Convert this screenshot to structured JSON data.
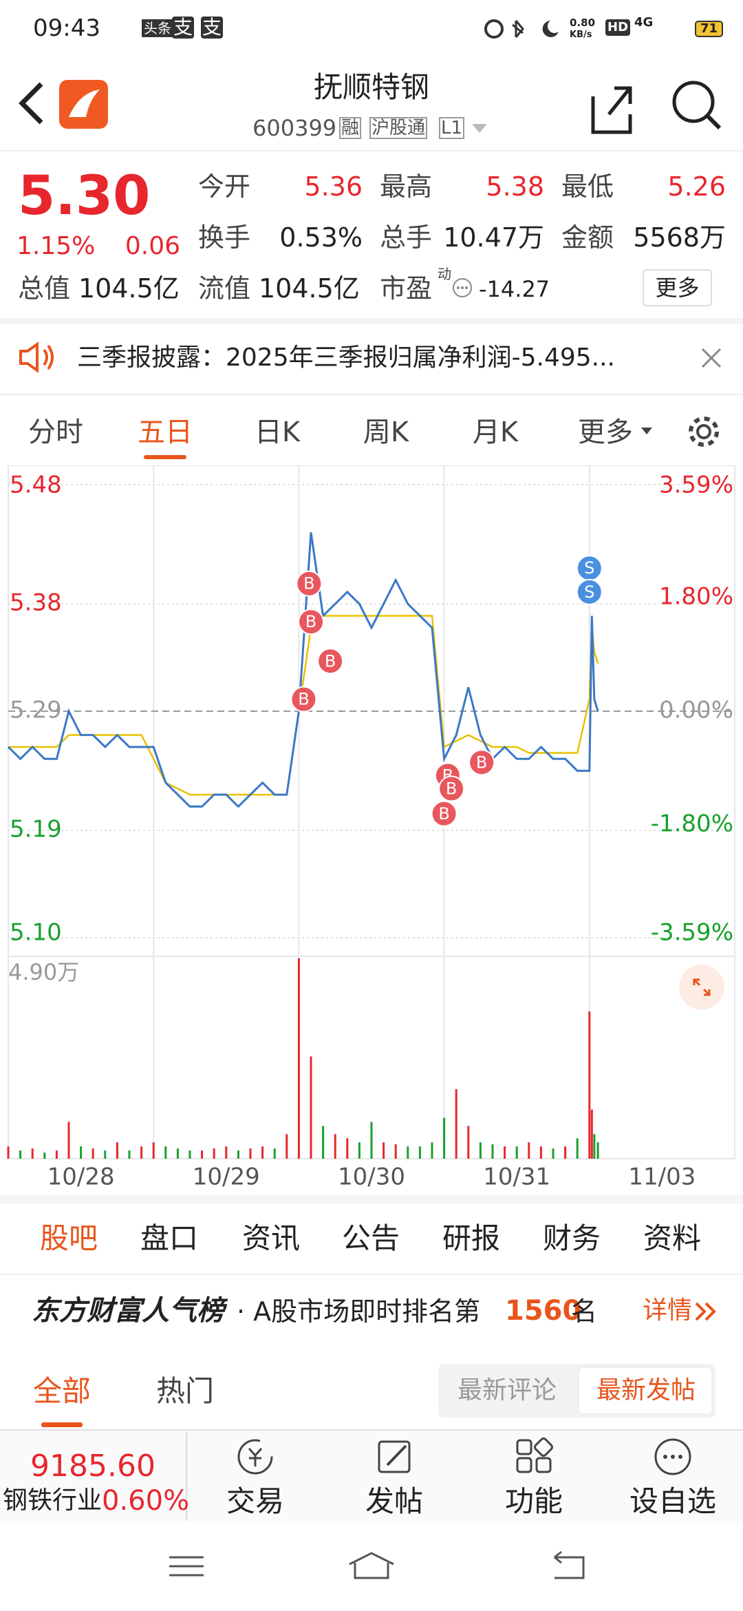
{
  "status_bar": {
    "time": "09:43",
    "app_icons": [
      "头条",
      "支",
      "支"
    ],
    "speed": "0.80",
    "speed_unit": "KB/s",
    "hd": "HD",
    "net": "4G",
    "battery": "71"
  },
  "header": {
    "title": "抚顺特钢",
    "code": "600399",
    "tags": [
      "融",
      "沪股通",
      "L1"
    ]
  },
  "quote": {
    "price": "5.30",
    "change_pct": "1.15%",
    "change": "0.06",
    "fields": [
      {
        "label": "今开",
        "value": "5.36"
      },
      {
        "label": "最高",
        "value": "5.38"
      },
      {
        "label": "最低",
        "value": "5.26"
      },
      {
        "label": "换手",
        "value": "0.53%"
      },
      {
        "label": "总手",
        "value": "10.47万"
      },
      {
        "label": "金额",
        "value": "5568万"
      },
      {
        "label": "总值",
        "value": "104.5亿"
      },
      {
        "label": "流值",
        "value": "104.5亿"
      },
      {
        "label": "市盈",
        "value": "-14.27"
      }
    ],
    "pe_note": "动",
    "more": "更多"
  },
  "notice": "三季报披露：2025年三季报归属净利润-5.495...",
  "tabs": [
    "分时",
    "五日",
    "日K",
    "周K",
    "月K",
    "更多"
  ],
  "chart_data": {
    "type": "line",
    "categories": [
      "10/28",
      "10/29",
      "10/30",
      "10/31",
      "11/03"
    ],
    "x": [
      0,
      1,
      2,
      3,
      4,
      5,
      6,
      7,
      8,
      9,
      10,
      11,
      12,
      13,
      14,
      15,
      16,
      17,
      18,
      19,
      20,
      21,
      22,
      23,
      24,
      25,
      26,
      27,
      28,
      29,
      30,
      31,
      32,
      33,
      34,
      35,
      36,
      37,
      38,
      39,
      40,
      41,
      42,
      43,
      44,
      45,
      46,
      47,
      48,
      48.2,
      48.4,
      48.7
    ],
    "xlim": [
      0,
      60
    ],
    "series": [
      {
        "name": "price",
        "color": "#3a78c6",
        "values": [
          5.26,
          5.25,
          5.26,
          5.25,
          5.25,
          5.29,
          5.27,
          5.27,
          5.26,
          5.27,
          5.26,
          5.26,
          5.26,
          5.23,
          5.22,
          5.21,
          5.21,
          5.22,
          5.22,
          5.21,
          5.22,
          5.23,
          5.22,
          5.22,
          5.29,
          5.44,
          5.37,
          5.38,
          5.39,
          5.38,
          5.36,
          5.38,
          5.4,
          5.38,
          5.37,
          5.36,
          5.25,
          5.27,
          5.31,
          5.27,
          5.25,
          5.26,
          5.25,
          5.25,
          5.26,
          5.25,
          5.25,
          5.24,
          5.24,
          5.37,
          5.3,
          5.29
        ]
      },
      {
        "name": "average",
        "color": "#e8c100",
        "values": [
          5.26,
          5.26,
          5.26,
          5.26,
          5.26,
          5.27,
          5.27,
          5.27,
          5.27,
          5.27,
          5.27,
          5.27,
          5.25,
          5.23,
          5.225,
          5.22,
          5.22,
          5.22,
          5.22,
          5.22,
          5.22,
          5.22,
          5.22,
          5.22,
          5.29,
          5.36,
          5.37,
          5.37,
          5.37,
          5.37,
          5.37,
          5.37,
          5.37,
          5.37,
          5.37,
          5.37,
          5.26,
          5.265,
          5.27,
          5.265,
          5.26,
          5.26,
          5.26,
          5.255,
          5.255,
          5.255,
          5.255,
          5.255,
          5.3,
          5.36,
          5.34,
          5.33
        ]
      }
    ],
    "ylim": [
      5.1,
      5.48
    ],
    "yticks": [
      5.48,
      5.38,
      5.29,
      5.19,
      {
        "value": 5.1,
        "label": "5.10"
      }
    ],
    "y2lim": [
      -3.59,
      3.59
    ],
    "y2ticks": [
      {
        "value": 3.59,
        "label": "3.59%"
      },
      {
        "value": 1.8,
        "label": "1.80%"
      },
      {
        "value": 0,
        "label": "0.00%"
      },
      {
        "value": -1.8,
        "label": "-1.80%"
      },
      {
        "value": -3.59,
        "label": "-3.59%"
      }
    ],
    "reference": 5.29,
    "trade_marks": [
      {
        "label": "B",
        "x": 24.85,
        "y": 5.397
      },
      {
        "label": "B",
        "x": 25.0,
        "y": 5.365
      },
      {
        "label": "B",
        "x": 26.6,
        "y": 5.332
      },
      {
        "label": "B",
        "x": 24.4,
        "y": 5.3
      },
      {
        "label": "B",
        "x": 36.3,
        "y": 5.236
      },
      {
        "label": "B",
        "x": 36.6,
        "y": 5.225
      },
      {
        "label": "B",
        "x": 36.0,
        "y": 5.204
      },
      {
        "label": "B",
        "x": 39.1,
        "y": 5.247
      },
      {
        "label": "S",
        "x": 48.0,
        "y": 5.41
      },
      {
        "label": "S",
        "x": 48.0,
        "y": 5.39
      }
    ],
    "volume": {
      "values": [
        3000,
        2000,
        2500,
        1500,
        2000,
        9000,
        3000,
        2500,
        2000,
        4000,
        2000,
        3000,
        4000,
        3000,
        2500,
        2000,
        2000,
        2500,
        3000,
        2000,
        2500,
        3000,
        2500,
        6000,
        49000,
        25000,
        8000,
        6000,
        5000,
        4000,
        9000,
        4000,
        3500,
        3000,
        3000,
        4000,
        10000,
        17000,
        8000,
        4000,
        3500,
        3000,
        3000,
        4000,
        3000,
        2500,
        3000,
        5000,
        36000,
        12000,
        6000,
        4000
      ],
      "ylim": [
        0,
        49000
      ],
      "yticks": [
        {
          "value": 49000,
          "label": "4.90万"
        }
      ],
      "up_color": "#e8262d",
      "down_color": "#18a02e"
    }
  },
  "sub_tabs": [
    "股吧",
    "盘口",
    "资讯",
    "公告",
    "研报",
    "财务",
    "资料"
  ],
  "rank": {
    "brand": "东方财富人气榜",
    "text": "· A股市场即时排名第",
    "rank": "1560",
    "unit": "名",
    "detail": "详情"
  },
  "filters": [
    "全部",
    "热门"
  ],
  "sort_buttons": [
    "最新评论",
    "最新发帖"
  ],
  "bottom_bar": {
    "index": "9185.60",
    "industry": "钢铁行业",
    "industry_change": "0.60%",
    "actions": [
      "交易",
      "发帖",
      "功能",
      "设自选"
    ]
  }
}
